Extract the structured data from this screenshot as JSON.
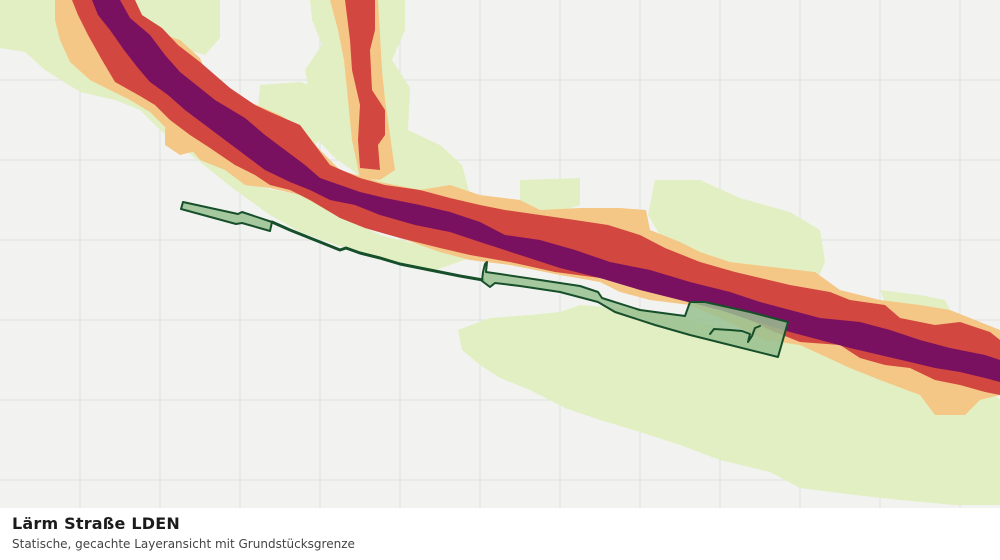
{
  "title": "Lärm Straße LDEN",
  "subtitle": "Statische, gecachte Layeransicht mit Grundstücksgrenze",
  "colors": {
    "background": "#f2f3f1",
    "grid": "#dfe1dd",
    "noise_level_1": "#e2efc2",
    "noise_level_2": "#f5c786",
    "noise_level_3": "#d2473f",
    "noise_level_4": "#7a1060",
    "parcel_fill": "#99bf90",
    "parcel_stroke": "#174f2b"
  },
  "layers": [
    {
      "name": "noise-level-1",
      "color_key": "noise_level_1"
    },
    {
      "name": "noise-level-2",
      "color_key": "noise_level_2"
    },
    {
      "name": "noise-level-3",
      "color_key": "noise_level_3"
    },
    {
      "name": "noise-level-4",
      "color_key": "noise_level_4"
    }
  ]
}
